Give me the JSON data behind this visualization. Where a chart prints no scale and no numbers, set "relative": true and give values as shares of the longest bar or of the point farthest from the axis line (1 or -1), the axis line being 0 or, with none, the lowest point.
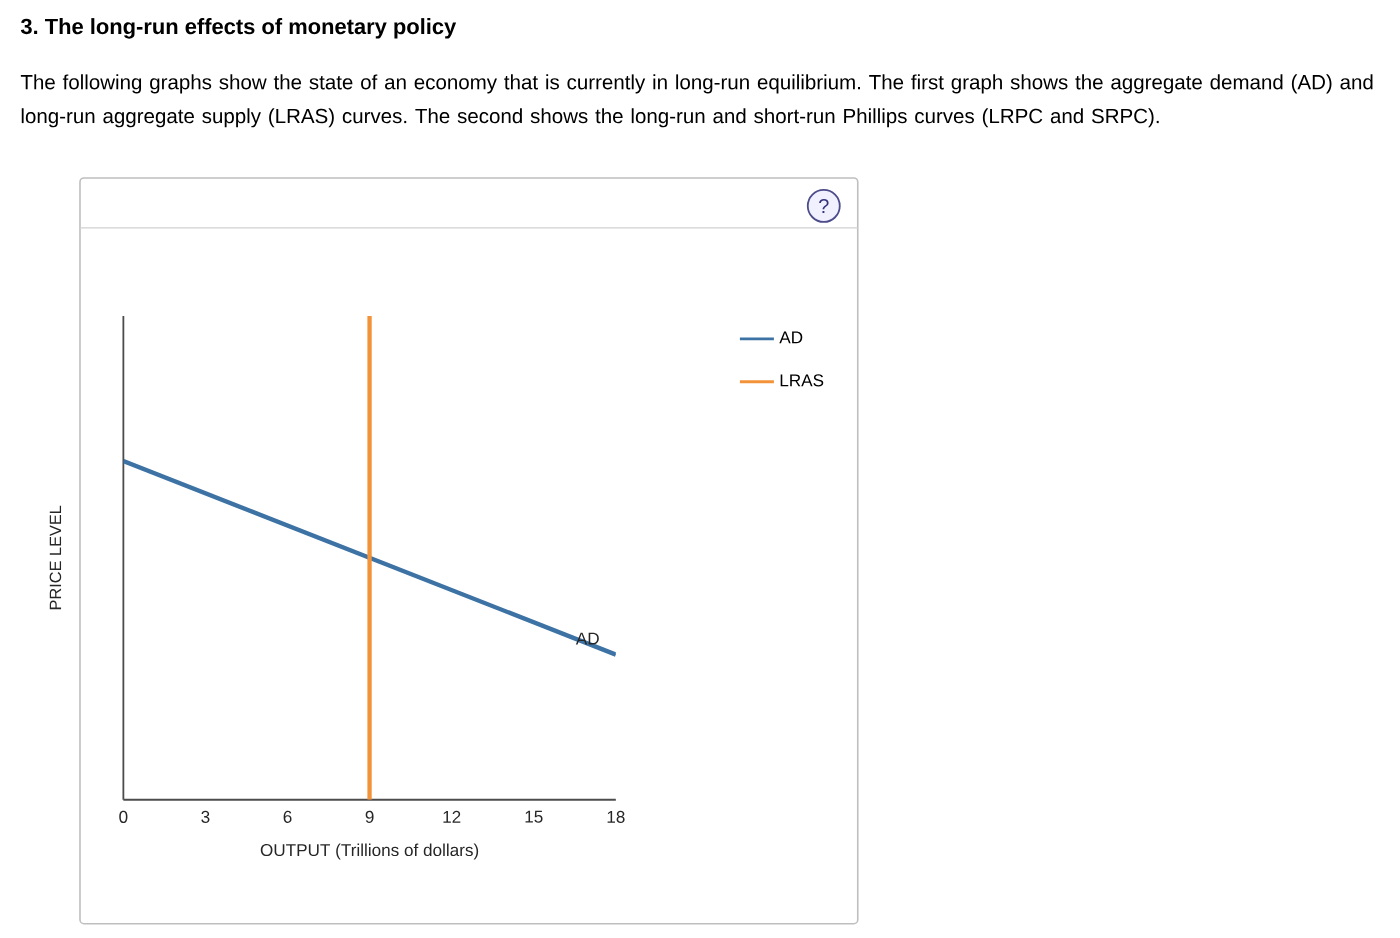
{
  "chart_data": {
    "type": "line",
    "title": "3. The long-run effects of monetary policy",
    "subtitle": "The following graphs show the state of an economy that is currently in long-run equilibrium. The first graph shows the aggregate demand (AD) and long-run aggregate supply (LRAS) curves. The second shows the long-run and short-run Phillips curves (LRPC and SRPC).",
    "xlabel": "OUTPUT (Trillions of dollars)",
    "ylabel": "PRICE LEVEL",
    "relative": true,
    "xlim": [
      0,
      18
    ],
    "xticks": [
      0,
      3,
      6,
      9,
      12,
      15,
      18
    ],
    "series": [
      {
        "name": "AD",
        "color": "#3d72a4",
        "x": [
          0,
          18
        ],
        "values": [
          0.7,
          0.3
        ]
      },
      {
        "name": "LRAS",
        "color": "#f2933a",
        "x": [
          9,
          9
        ],
        "values": [
          0,
          1
        ]
      }
    ],
    "legend": "right",
    "annotations": [
      "?"
    ]
  }
}
